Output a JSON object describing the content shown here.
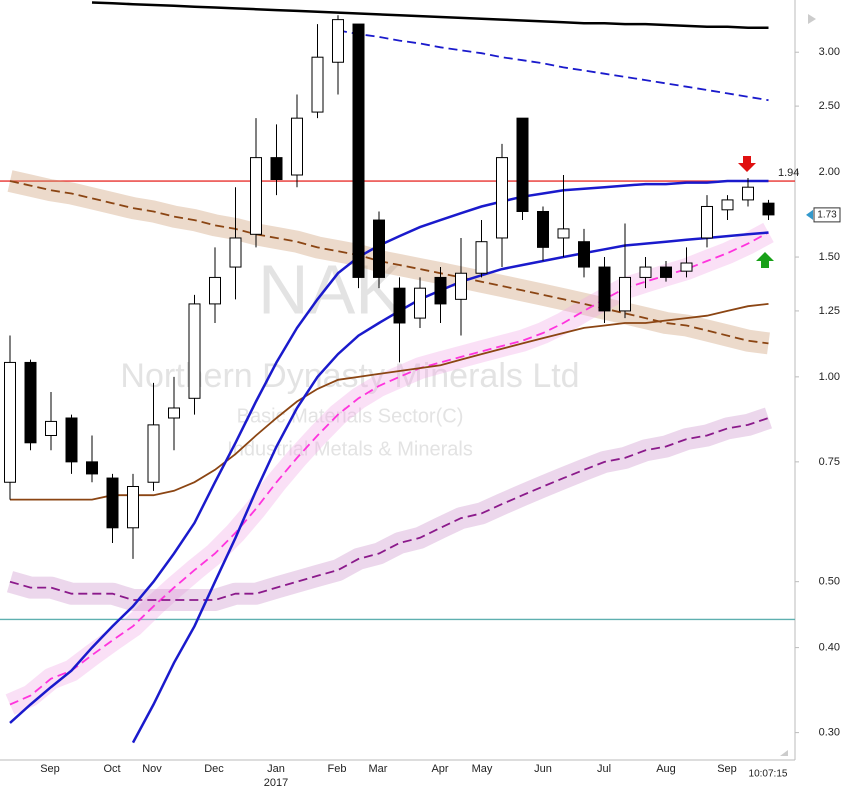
{
  "chart_data": {
    "type": "candlestick",
    "watermark": {
      "symbol": "NAK",
      "name": "Northern Dynasty Minerals Ltd",
      "sector": "Basic Materials Sector(C)",
      "industry": "Industrial Metals & Minerals"
    },
    "ylim": [
      0.28,
      3.58
    ],
    "log_scale": true,
    "yticks": [
      {
        "value": 0.3,
        "label": "0.30"
      },
      {
        "value": 0.4,
        "label": "0.40"
      },
      {
        "value": 0.5,
        "label": "0.50"
      },
      {
        "value": 0.75,
        "label": "0.75"
      },
      {
        "value": 1,
        "label": "1.00"
      },
      {
        "value": 1.25,
        "label": "1.25"
      },
      {
        "value": 1.5,
        "label": "1.50"
      },
      {
        "value": 2,
        "label": "2.00"
      },
      {
        "value": 2.5,
        "label": "2.50"
      },
      {
        "value": 3,
        "label": "3.00"
      }
    ],
    "xlabels": [
      "Sep",
      "Oct",
      "Nov",
      "Dec",
      "Jan",
      "Feb",
      "Mar",
      "Apr",
      "May",
      "Jun",
      "Jul",
      "Aug",
      "Sep"
    ],
    "year_label": "2017",
    "time": "10:07:15",
    "last": 1.73,
    "hlines": [
      {
        "value": 1.94,
        "color": "#e8322e"
      },
      {
        "value": 0.44,
        "color": "#5fb0b0"
      }
    ],
    "candles": [
      {
        "o": 0.7,
        "h": 1.15,
        "l": 0.66,
        "c": 1.05
      },
      {
        "o": 1.05,
        "h": 1.06,
        "l": 0.78,
        "c": 0.8
      },
      {
        "o": 0.82,
        "h": 0.95,
        "l": 0.78,
        "c": 0.86
      },
      {
        "o": 0.87,
        "h": 0.88,
        "l": 0.72,
        "c": 0.75
      },
      {
        "o": 0.75,
        "h": 0.82,
        "l": 0.7,
        "c": 0.72
      },
      {
        "o": 0.71,
        "h": 0.72,
        "l": 0.57,
        "c": 0.6
      },
      {
        "o": 0.6,
        "h": 0.72,
        "l": 0.54,
        "c": 0.69
      },
      {
        "o": 0.7,
        "h": 0.98,
        "l": 0.68,
        "c": 0.85
      },
      {
        "o": 0.87,
        "h": 1.0,
        "l": 0.78,
        "c": 0.9
      },
      {
        "o": 0.93,
        "h": 1.32,
        "l": 0.88,
        "c": 1.28
      },
      {
        "o": 1.28,
        "h": 1.55,
        "l": 1.2,
        "c": 1.4
      },
      {
        "o": 1.45,
        "h": 1.9,
        "l": 1.3,
        "c": 1.6
      },
      {
        "o": 1.62,
        "h": 2.4,
        "l": 1.55,
        "c": 2.1
      },
      {
        "o": 2.1,
        "h": 2.35,
        "l": 1.85,
        "c": 1.95
      },
      {
        "o": 1.98,
        "h": 2.6,
        "l": 1.9,
        "c": 2.4
      },
      {
        "o": 2.45,
        "h": 3.3,
        "l": 2.4,
        "c": 2.95
      },
      {
        "o": 2.9,
        "h": 3.4,
        "l": 2.6,
        "c": 3.35
      },
      {
        "o": 3.3,
        "h": 3.3,
        "l": 1.35,
        "c": 1.4
      },
      {
        "o": 1.7,
        "h": 1.75,
        "l": 1.35,
        "c": 1.4
      },
      {
        "o": 1.35,
        "h": 1.4,
        "l": 1.05,
        "c": 1.2
      },
      {
        "o": 1.22,
        "h": 1.4,
        "l": 1.18,
        "c": 1.35
      },
      {
        "o": 1.4,
        "h": 1.45,
        "l": 1.2,
        "c": 1.28
      },
      {
        "o": 1.3,
        "h": 1.6,
        "l": 1.15,
        "c": 1.42
      },
      {
        "o": 1.42,
        "h": 1.7,
        "l": 1.4,
        "c": 1.58
      },
      {
        "o": 1.6,
        "h": 2.2,
        "l": 1.45,
        "c": 2.1
      },
      {
        "o": 2.4,
        "h": 2.4,
        "l": 1.7,
        "c": 1.75
      },
      {
        "o": 1.75,
        "h": 1.78,
        "l": 1.48,
        "c": 1.55
      },
      {
        "o": 1.6,
        "h": 1.98,
        "l": 1.5,
        "c": 1.65
      },
      {
        "o": 1.58,
        "h": 1.65,
        "l": 1.4,
        "c": 1.45
      },
      {
        "o": 1.45,
        "h": 1.5,
        "l": 1.2,
        "c": 1.25
      },
      {
        "o": 1.25,
        "h": 1.68,
        "l": 1.22,
        "c": 1.4
      },
      {
        "o": 1.4,
        "h": 1.5,
        "l": 1.35,
        "c": 1.45
      },
      {
        "o": 1.45,
        "h": 1.48,
        "l": 1.38,
        "c": 1.4
      },
      {
        "o": 1.43,
        "h": 1.55,
        "l": 1.4,
        "c": 1.47
      },
      {
        "o": 1.6,
        "h": 1.85,
        "l": 1.55,
        "c": 1.78
      },
      {
        "o": 1.76,
        "h": 1.85,
        "l": 1.7,
        "c": 1.82
      },
      {
        "o": 1.82,
        "h": 1.96,
        "l": 1.78,
        "c": 1.9
      },
      {
        "o": 1.8,
        "h": 1.82,
        "l": 1.7,
        "c": 1.73
      }
    ],
    "series": [
      {
        "color": "#8b4513",
        "dash": true,
        "band": "#c8956a",
        "values": [
          1.94,
          1.91,
          1.88,
          1.86,
          1.83,
          1.8,
          1.77,
          1.75,
          1.72,
          1.7,
          1.67,
          1.65,
          1.62,
          1.6,
          1.58,
          1.55,
          1.53,
          1.51,
          1.48,
          1.46,
          1.44,
          1.42,
          1.4,
          1.38,
          1.36,
          1.34,
          1.32,
          1.3,
          1.28,
          1.26,
          1.24,
          1.22,
          1.2,
          1.19,
          1.17,
          1.15,
          1.13,
          1.12
        ]
      },
      {
        "color": "#ff33dd",
        "dash": true,
        "band": "#f2a6e6",
        "values": [
          0.33,
          0.34,
          0.36,
          0.37,
          0.39,
          0.41,
          0.43,
          0.46,
          0.49,
          0.52,
          0.55,
          0.59,
          0.64,
          0.7,
          0.76,
          0.82,
          0.88,
          0.93,
          0.97,
          1.0,
          1.03,
          1.05,
          1.07,
          1.09,
          1.11,
          1.13,
          1.16,
          1.2,
          1.25,
          1.3,
          1.35,
          1.38,
          1.41,
          1.44,
          1.48,
          1.52,
          1.57,
          1.63
        ]
      },
      {
        "color": "#8b1a8b",
        "dash": true,
        "band": "#c88bc8",
        "values": [
          0.5,
          0.49,
          0.49,
          0.48,
          0.48,
          0.48,
          0.47,
          0.47,
          0.47,
          0.47,
          0.47,
          0.48,
          0.48,
          0.49,
          0.5,
          0.51,
          0.52,
          0.54,
          0.55,
          0.57,
          0.58,
          0.6,
          0.62,
          0.63,
          0.65,
          0.67,
          0.69,
          0.71,
          0.73,
          0.75,
          0.76,
          0.78,
          0.79,
          0.81,
          0.82,
          0.84,
          0.85,
          0.87
        ]
      },
      {
        "color": "#8b4513",
        "dash": false,
        "values": [
          0.66,
          0.66,
          0.66,
          0.66,
          0.66,
          0.67,
          0.67,
          0.67,
          0.68,
          0.7,
          0.73,
          0.77,
          0.82,
          0.87,
          0.92,
          0.96,
          0.99,
          1.0,
          1.01,
          1.02,
          1.03,
          1.04,
          1.06,
          1.08,
          1.1,
          1.12,
          1.14,
          1.16,
          1.18,
          1.19,
          1.2,
          1.2,
          1.21,
          1.22,
          1.23,
          1.25,
          1.27,
          1.28
        ]
      },
      {
        "color": "#1a1acc",
        "dash": false,
        "values": [
          null,
          null,
          null,
          null,
          null,
          null,
          0.29,
          0.33,
          0.38,
          0.43,
          0.5,
          0.58,
          0.68,
          0.79,
          0.9,
          1.0,
          1.08,
          1.15,
          1.2,
          1.25,
          1.3,
          1.34,
          1.38,
          1.41,
          1.44,
          1.46,
          1.48,
          1.5,
          1.52,
          1.54,
          1.56,
          1.57,
          1.58,
          1.59,
          1.6,
          1.61,
          1.62,
          1.63
        ]
      },
      {
        "color": "#1a1acc",
        "dash": false,
        "values": [
          0.31,
          0.33,
          0.35,
          0.37,
          0.4,
          0.43,
          0.46,
          0.5,
          0.55,
          0.61,
          0.7,
          0.8,
          0.92,
          1.05,
          1.18,
          1.3,
          1.42,
          1.5,
          1.56,
          1.61,
          1.66,
          1.7,
          1.74,
          1.78,
          1.81,
          1.84,
          1.86,
          1.88,
          1.89,
          1.9,
          1.91,
          1.92,
          1.92,
          1.93,
          1.93,
          1.94,
          1.94,
          1.94
        ]
      },
      {
        "color": "#000000",
        "dash": false,
        "values": [
          null,
          null,
          null,
          null,
          3.55,
          3.54,
          3.53,
          3.52,
          3.51,
          3.5,
          3.49,
          3.48,
          3.47,
          3.46,
          3.45,
          3.44,
          3.43,
          3.42,
          3.41,
          3.4,
          3.39,
          3.38,
          3.37,
          3.36,
          3.35,
          3.34,
          3.33,
          3.32,
          3.31,
          3.31,
          3.3,
          3.3,
          3.29,
          3.28,
          3.27,
          3.27,
          3.26,
          3.26
        ]
      },
      {
        "color": "#1a1acc",
        "dash": true,
        "values": [
          null,
          null,
          null,
          null,
          null,
          null,
          null,
          null,
          null,
          null,
          null,
          null,
          null,
          null,
          null,
          null,
          3.23,
          3.19,
          3.16,
          3.12,
          3.09,
          3.05,
          3.02,
          2.99,
          2.95,
          2.92,
          2.89,
          2.85,
          2.82,
          2.79,
          2.76,
          2.73,
          2.7,
          2.67,
          2.64,
          2.61,
          2.58,
          2.55
        ]
      }
    ]
  }
}
